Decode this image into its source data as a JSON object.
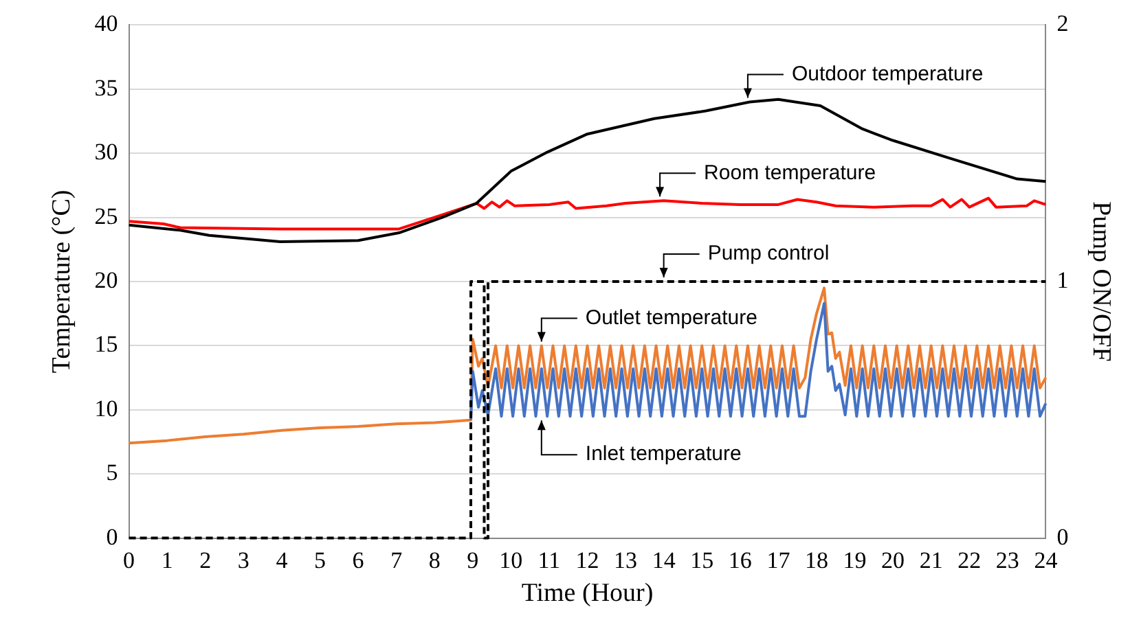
{
  "chart_data": {
    "type": "line",
    "xlabel": "Time (Hour)",
    "ylabel": "Temperature (°C)",
    "y2label": "Pump ON/OFF",
    "xlim": [
      0,
      24
    ],
    "xticks": [
      0,
      1,
      2,
      3,
      4,
      5,
      6,
      7,
      8,
      9,
      10,
      11,
      12,
      13,
      14,
      15,
      16,
      17,
      18,
      19,
      20,
      21,
      22,
      23,
      24
    ],
    "ylim": [
      0,
      40
    ],
    "yticks": [
      0,
      5,
      10,
      15,
      20,
      25,
      30,
      35,
      40
    ],
    "y2lim": [
      0,
      2
    ],
    "y2ticks": [
      0,
      1,
      2
    ],
    "grid": "y",
    "legend": false,
    "marker": "none",
    "annotations": [
      {
        "text": "Outdoor temperature",
        "x": 16.2,
        "y": 34
      },
      {
        "text": "Room temperature",
        "x": 13.9,
        "y": 26.3
      },
      {
        "text": "Pump control",
        "x": 14,
        "y": 20
      },
      {
        "text": "Outlet temperature",
        "x": 10.8,
        "y": 15
      },
      {
        "text": "Inlet temperature",
        "x": 10.8,
        "y": 9.5
      }
    ],
    "series": [
      {
        "type": "line",
        "color": "#000000",
        "x": [
          0,
          1.34,
          2.1,
          3.96,
          6.0,
          7.07,
          8.2,
          9.1,
          10.0,
          10.96,
          12.0,
          13.75,
          15.1,
          16.25,
          17.0,
          18.1,
          19.2,
          20.0,
          21.5,
          23.25,
          24
        ],
        "values": [
          24.4,
          24.0,
          23.6,
          23.1,
          23.2,
          23.8,
          25.0,
          26.1,
          28.6,
          30.1,
          31.5,
          32.7,
          33.3,
          34.0,
          34.2,
          33.7,
          31.9,
          31.0,
          29.6,
          28.0,
          27.8
        ]
      },
      {
        "type": "line",
        "color": "#ff0000",
        "x": [
          0,
          0.9,
          1.34,
          3.96,
          7.07,
          8.2,
          9.1,
          9.3,
          9.5,
          9.7,
          9.9,
          10.1,
          11,
          11.5,
          11.7,
          12.5,
          13,
          14,
          15,
          16,
          17,
          17.5,
          18,
          18.5,
          19.5,
          20.5,
          21,
          21.3,
          21.5,
          21.8,
          22,
          22.5,
          22.7,
          23.5,
          23.7,
          24
        ],
        "values": [
          24.7,
          24.5,
          24.2,
          24.1,
          24.1,
          25.2,
          26.1,
          25.7,
          26.2,
          25.8,
          26.3,
          25.9,
          26.0,
          26.2,
          25.7,
          25.9,
          26.1,
          26.3,
          26.1,
          26.0,
          26.0,
          26.4,
          26.2,
          25.9,
          25.8,
          25.9,
          25.9,
          26.4,
          25.8,
          26.4,
          25.8,
          26.5,
          25.8,
          25.9,
          26.3,
          26.0
        ]
      },
      {
        "type": "line",
        "color": "#000000",
        "axis": "y2",
        "line_style": "dashed",
        "x": [
          0,
          8.95,
          8.95,
          9.3,
          9.3,
          9.4,
          9.4,
          24
        ],
        "values": [
          0,
          0,
          1,
          1,
          0,
          0,
          1,
          1
        ]
      },
      {
        "type": "line",
        "color": "#4472c4",
        "x": [
          8.95,
          9.0,
          9.15,
          9.25,
          9.4,
          9.6,
          9.75,
          9.9,
          10.05,
          10.2,
          10.35,
          10.5,
          10.65,
          10.8,
          10.95,
          11.1,
          11.25,
          11.4,
          11.55,
          11.7,
          11.85,
          12.0,
          12.15,
          12.3,
          12.45,
          12.6,
          12.75,
          12.9,
          13.05,
          13.2,
          13.35,
          13.5,
          13.65,
          13.8,
          13.95,
          14.1,
          14.25,
          14.4,
          14.55,
          14.7,
          14.85,
          15.0,
          15.15,
          15.3,
          15.45,
          15.6,
          15.75,
          15.9,
          16.05,
          16.2,
          16.35,
          16.5,
          16.65,
          16.8,
          16.95,
          17.1,
          17.25,
          17.4,
          17.55,
          17.7,
          17.85,
          18.0,
          18.2,
          18.3,
          18.4,
          18.5,
          18.6,
          18.75,
          18.9,
          19.05,
          19.2,
          19.35,
          19.5,
          19.65,
          19.8,
          19.95,
          20.1,
          20.25,
          20.4,
          20.55,
          20.7,
          20.85,
          21.0,
          21.15,
          21.3,
          21.45,
          21.6,
          21.75,
          21.9,
          22.05,
          22.2,
          22.35,
          22.5,
          22.65,
          22.8,
          22.95,
          23.1,
          23.25,
          23.4,
          23.55,
          23.7,
          23.85,
          24.0
        ],
        "values": [
          9.2,
          13.0,
          10.2,
          11.5,
          9.6,
          13.2,
          9.5,
          13.2,
          9.5,
          13.2,
          9.5,
          13.2,
          9.5,
          13.2,
          9.5,
          13.2,
          9.5,
          13.2,
          9.5,
          13.2,
          9.5,
          13.2,
          9.5,
          13.2,
          9.5,
          13.2,
          9.5,
          13.2,
          9.5,
          13.2,
          9.5,
          13.2,
          9.5,
          13.2,
          9.5,
          13.2,
          9.5,
          13.2,
          9.5,
          13.2,
          9.5,
          13.2,
          9.5,
          13.2,
          9.5,
          13.2,
          9.5,
          13.2,
          9.5,
          13.2,
          9.5,
          13.2,
          9.5,
          13.2,
          9.5,
          13.2,
          9.5,
          13.2,
          9.5,
          9.5,
          13.0,
          15.5,
          18.3,
          13.0,
          13.4,
          11.5,
          12.0,
          9.6,
          13.2,
          9.5,
          13.2,
          9.5,
          13.2,
          9.5,
          13.2,
          9.5,
          13.2,
          9.5,
          13.2,
          9.5,
          13.2,
          9.5,
          13.2,
          9.5,
          13.2,
          9.5,
          13.2,
          9.5,
          13.2,
          9.5,
          13.2,
          9.5,
          13.2,
          9.5,
          13.2,
          9.5,
          13.2,
          9.5,
          13.2,
          9.5,
          13.2,
          9.5,
          10.5
        ]
      },
      {
        "type": "line",
        "color": "#ed7d31",
        "x": [
          0,
          1,
          2,
          3,
          4,
          5,
          6,
          7,
          8,
          8.95,
          9.0,
          9.15,
          9.25,
          9.4,
          9.6,
          9.75,
          9.9,
          10.05,
          10.2,
          10.35,
          10.5,
          10.65,
          10.8,
          10.95,
          11.1,
          11.25,
          11.4,
          11.55,
          11.7,
          11.85,
          12.0,
          12.15,
          12.3,
          12.45,
          12.6,
          12.75,
          12.9,
          13.05,
          13.2,
          13.35,
          13.5,
          13.65,
          13.8,
          13.95,
          14.1,
          14.25,
          14.4,
          14.55,
          14.7,
          14.85,
          15.0,
          15.15,
          15.3,
          15.45,
          15.6,
          15.75,
          15.9,
          16.05,
          16.2,
          16.35,
          16.5,
          16.65,
          16.8,
          16.95,
          17.1,
          17.25,
          17.4,
          17.55,
          17.7,
          17.85,
          18.0,
          18.2,
          18.3,
          18.4,
          18.5,
          18.6,
          18.75,
          18.9,
          19.05,
          19.2,
          19.35,
          19.5,
          19.65,
          19.8,
          19.95,
          20.1,
          20.25,
          20.4,
          20.55,
          20.7,
          20.85,
          21.0,
          21.15,
          21.3,
          21.45,
          21.6,
          21.75,
          21.9,
          22.05,
          22.2,
          22.35,
          22.5,
          22.65,
          22.8,
          22.95,
          23.1,
          23.25,
          23.4,
          23.55,
          23.7,
          23.85,
          24.0
        ],
        "values": [
          7.4,
          7.6,
          7.9,
          8.1,
          8.4,
          8.6,
          8.7,
          8.9,
          9.0,
          9.2,
          15.5,
          13.4,
          14.0,
          11.8,
          15,
          11.7,
          15,
          11.7,
          15,
          11.7,
          15,
          11.7,
          15,
          11.7,
          15,
          11.7,
          15,
          11.7,
          15,
          11.7,
          15,
          11.7,
          15,
          11.7,
          15,
          11.7,
          15,
          11.7,
          15,
          11.7,
          15,
          11.7,
          15,
          11.7,
          15,
          11.7,
          15,
          11.7,
          15,
          11.7,
          15,
          11.7,
          15,
          11.7,
          15,
          11.7,
          15,
          11.7,
          15,
          11.7,
          15,
          11.7,
          15,
          11.7,
          15,
          11.7,
          15,
          11.7,
          12.5,
          15.5,
          17.5,
          19.5,
          15.9,
          16.0,
          14.0,
          14.5,
          11.9,
          15,
          11.7,
          15,
          11.7,
          15,
          11.7,
          15,
          11.7,
          15,
          11.7,
          15,
          11.7,
          15,
          11.7,
          15,
          11.7,
          15,
          11.7,
          15,
          11.7,
          15,
          11.7,
          15,
          11.7,
          15,
          11.7,
          15,
          11.7,
          15,
          11.7,
          15,
          11.7,
          15,
          11.7,
          12.5
        ]
      }
    ]
  }
}
